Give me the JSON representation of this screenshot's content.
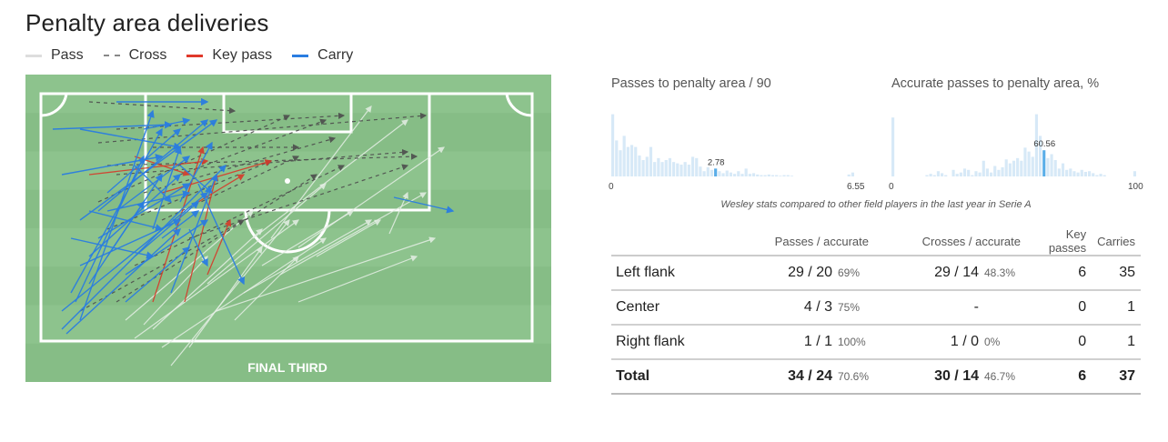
{
  "title": "Penalty area deliveries",
  "legend": [
    {
      "label": "Pass",
      "color": "#dddddd",
      "style": "solid"
    },
    {
      "label": "Cross",
      "color": "#888888",
      "style": "dashed"
    },
    {
      "label": "Key pass",
      "color": "#e0392b",
      "style": "solid"
    },
    {
      "label": "Carry",
      "color": "#2a7de1",
      "style": "solid"
    }
  ],
  "pitch": {
    "label": "FINAL THIRD",
    "grass_light": "#8dc38d",
    "grass_dark": "#86bd86"
  },
  "hist_left": {
    "title": "Passes to penalty area / 90",
    "min": "0",
    "max": "6.55",
    "value_label": "2.78",
    "value": 2.78,
    "range": [
      0,
      6.55
    ],
    "bars": [
      0.95,
      0.55,
      0.4,
      0.62,
      0.45,
      0.48,
      0.45,
      0.32,
      0.25,
      0.3,
      0.45,
      0.22,
      0.28,
      0.22,
      0.25,
      0.28,
      0.22,
      0.2,
      0.18,
      0.22,
      0.18,
      0.3,
      0.28,
      0.15,
      0.08,
      0.14,
      0.1,
      0.12,
      0.08,
      0.05,
      0.09,
      0.06,
      0.04,
      0.08,
      0.04,
      0.12,
      0.04,
      0.05,
      0.03,
      0.02,
      0.02,
      0.03,
      0.02,
      0.02,
      0.01,
      0.02,
      0.02,
      0.01,
      0.0,
      0.0,
      0.0,
      0.0,
      0.0,
      0.0,
      0.0,
      0.0,
      0.0,
      0.0,
      0.0,
      0.0,
      0.0,
      0.0,
      0.03,
      0.06
    ],
    "highlight_index": 27
  },
  "hist_right": {
    "title": "Accurate passes to penalty area, %",
    "min": "0",
    "max": "100",
    "value_label": "60.56",
    "value": 60.56,
    "range": [
      0,
      100
    ],
    "bars": [
      0.9,
      0.0,
      0.0,
      0.0,
      0.0,
      0.0,
      0.0,
      0.0,
      0.0,
      0.02,
      0.04,
      0.02,
      0.08,
      0.05,
      0.02,
      0.0,
      0.1,
      0.04,
      0.06,
      0.12,
      0.1,
      0.02,
      0.08,
      0.06,
      0.24,
      0.12,
      0.06,
      0.16,
      0.1,
      0.14,
      0.26,
      0.2,
      0.24,
      0.28,
      0.24,
      0.44,
      0.38,
      0.3,
      0.95,
      0.62,
      0.4,
      0.28,
      0.34,
      0.25,
      0.12,
      0.2,
      0.1,
      0.12,
      0.08,
      0.06,
      0.1,
      0.07,
      0.08,
      0.05,
      0.02,
      0.04,
      0.02,
      0.0,
      0.0,
      0.0,
      0.0,
      0.0,
      0.0,
      0.0,
      0.08
    ],
    "highlight_index": 40
  },
  "caption": "Wesley stats compared to other field players in the last year in Serie A",
  "table": {
    "headers": [
      "",
      "Passes / accurate",
      "Crosses / accurate",
      "Key passes",
      "Carries"
    ],
    "rows": [
      {
        "label": "Left flank",
        "passes": "29 / 20",
        "passes_pct": "69%",
        "crosses": "29 / 14",
        "crosses_pct": "48.3%",
        "key": "6",
        "carries": "35"
      },
      {
        "label": "Center",
        "passes": "4 / 3",
        "passes_pct": "75%",
        "crosses": "-",
        "crosses_pct": "",
        "key": "0",
        "carries": "1"
      },
      {
        "label": "Right flank",
        "passes": "1 / 1",
        "passes_pct": "100%",
        "crosses": "1 / 0",
        "crosses_pct": "0%",
        "key": "0",
        "carries": "1"
      }
    ],
    "total": {
      "label": "Total",
      "passes": "34 / 24",
      "passes_pct": "70.6%",
      "crosses": "30 / 14",
      "crosses_pct": "46.7%",
      "key": "6",
      "carries": "37"
    }
  }
}
